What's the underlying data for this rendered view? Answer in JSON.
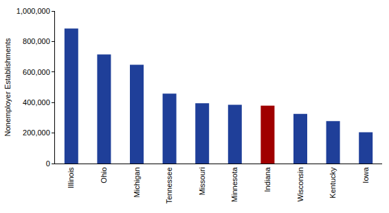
{
  "chart_data": {
    "type": "bar",
    "y_label": "Nonemployer Establishments",
    "categories": [
      "Illinois",
      "Ohio",
      "Michigan",
      "Tennessee",
      "Missouri",
      "Minnesota",
      "Indiana",
      "Wisconsin",
      "Kentucky",
      "Iowa"
    ],
    "values": [
      885000,
      715000,
      648000,
      458000,
      395000,
      385000,
      380000,
      325000,
      278000,
      205000
    ],
    "colors": [
      "#1f3f99",
      "#1f3f99",
      "#1f3f99",
      "#1f3f99",
      "#1f3f99",
      "#1f3f99",
      "#a00000",
      "#1f3f99",
      "#1f3f99",
      "#1f3f99"
    ],
    "ylim": [
      0,
      1000000
    ],
    "yticks": [
      0,
      {
        "value": 200000,
        "label": "200,000"
      },
      {
        "value": 400000,
        "label": "400,000"
      },
      {
        "value": 600000,
        "label": "600,000"
      },
      {
        "value": 800000,
        "label": "800,000"
      },
      {
        "value": 1000000,
        "label": "1,000,000"
      }
    ],
    "grid": false
  }
}
